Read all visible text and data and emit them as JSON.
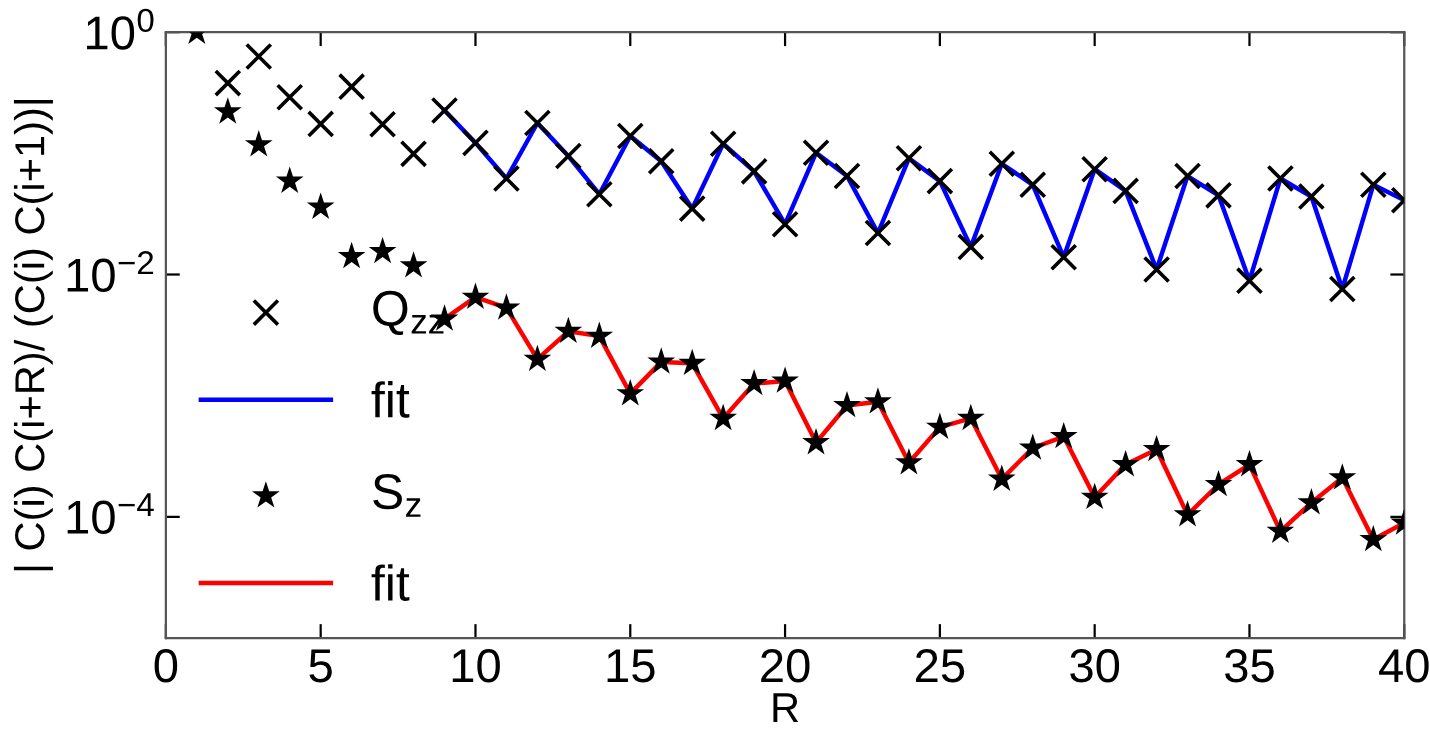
{
  "chart_data": {
    "type": "scatter",
    "xlabel": "R",
    "ylabel": "| C(i) C(i+R)/ (C(i) C(i+1))|",
    "log": "y",
    "grid": false,
    "legend": "left",
    "xlim": [
      0,
      40
    ],
    "xticks": [
      0,
      5,
      10,
      15,
      20,
      25,
      30,
      35,
      40
    ],
    "ylim": [
      1e-05,
      1
    ],
    "yticks": [
      {
        "value": 1,
        "label": "10$^{0}$"
      },
      {
        "value": 0.01,
        "label": "10$^{−2}$"
      },
      {
        "value": 0.0001,
        "label": "10$^{−4}$"
      }
    ],
    "series": [
      {
        "name": "Q$_{zz}$",
        "marker": "cross",
        "color": "#000000",
        "x": [
          2,
          3,
          4,
          5,
          6,
          7,
          8,
          9,
          10,
          11,
          12,
          13,
          14,
          15,
          16,
          17,
          18,
          19,
          20,
          21,
          22,
          23,
          24,
          25,
          26,
          27,
          28,
          29,
          30,
          31,
          32,
          33,
          34,
          35,
          36,
          37,
          38,
          39,
          40
        ],
        "values": [
          0.38,
          0.63,
          0.29,
          0.175,
          0.355,
          0.174,
          0.099,
          0.226,
          0.122,
          0.062,
          0.178,
          0.095,
          0.046,
          0.139,
          0.086,
          0.035,
          0.12,
          0.071,
          0.026,
          0.101,
          0.065,
          0.022,
          0.091,
          0.059,
          0.0169,
          0.082,
          0.055,
          0.0139,
          0.074,
          0.049,
          0.011,
          0.065,
          0.045,
          0.0089,
          0.062,
          0.044,
          0.0076,
          0.055,
          0.041
        ]
      },
      {
        "name": "fit",
        "type": "line",
        "marker": "none",
        "line_style": "solid",
        "color": "#0000ff",
        "x": [
          9,
          10,
          11,
          12,
          13,
          14,
          15,
          16,
          17,
          18,
          19,
          20,
          21,
          22,
          23,
          24,
          25,
          26,
          27,
          28,
          29,
          30,
          31,
          32,
          33,
          34,
          35,
          36,
          37,
          38,
          39,
          40
        ],
        "values": [
          0.226,
          0.122,
          0.062,
          0.178,
          0.095,
          0.046,
          0.139,
          0.086,
          0.035,
          0.12,
          0.071,
          0.026,
          0.101,
          0.065,
          0.022,
          0.091,
          0.059,
          0.0169,
          0.082,
          0.055,
          0.0139,
          0.074,
          0.049,
          0.011,
          0.065,
          0.045,
          0.0089,
          0.062,
          0.044,
          0.0076,
          0.055,
          0.041
        ]
      },
      {
        "name": "S$_{z}$",
        "marker": "star",
        "color": "#000000",
        "x": [
          1,
          2,
          3,
          4,
          5,
          6,
          7,
          8,
          9,
          10,
          11,
          12,
          13,
          14,
          15,
          16,
          17,
          18,
          19,
          20,
          21,
          22,
          23,
          24,
          25,
          26,
          27,
          28,
          29,
          30,
          31,
          32,
          33,
          34,
          35,
          36,
          37,
          38,
          39,
          40
        ],
        "values": [
          1,
          0.22,
          0.118,
          0.059,
          0.036,
          0.0141,
          0.0155,
          0.0118,
          0.0043,
          0.0065,
          0.0053,
          0.002,
          0.0034,
          0.0031,
          0.00104,
          0.0019,
          0.00185,
          0.00065,
          0.00126,
          0.00132,
          0.00041,
          0.00083,
          0.00089,
          0.00028,
          0.00055,
          0.00065,
          0.000205,
          0.00037,
          0.00046,
          0.000145,
          0.00027,
          0.00036,
          0.000104,
          0.000185,
          0.00027,
          7.6e-05,
          0.000131,
          0.00021,
          6.5e-05,
          8.9e-05
        ]
      },
      {
        "name": "fit",
        "type": "line",
        "marker": "none",
        "line_style": "solid",
        "color": "#ff0000",
        "x": [
          9,
          10,
          11,
          12,
          13,
          14,
          15,
          16,
          17,
          18,
          19,
          20,
          21,
          22,
          23,
          24,
          25,
          26,
          27,
          28,
          29,
          30,
          31,
          32,
          33,
          34,
          35,
          36,
          37,
          38,
          39,
          40
        ],
        "values": [
          0.0043,
          0.0065,
          0.0053,
          0.002,
          0.0034,
          0.0031,
          0.00104,
          0.0019,
          0.00185,
          0.00065,
          0.00126,
          0.00132,
          0.00041,
          0.00083,
          0.00089,
          0.00028,
          0.00055,
          0.00065,
          0.000205,
          0.00037,
          0.00046,
          0.000145,
          0.00027,
          0.00036,
          0.000104,
          0.000185,
          0.00027,
          7.6e-05,
          0.000131,
          0.00021,
          6.5e-05,
          8.9e-05
        ]
      }
    ]
  }
}
